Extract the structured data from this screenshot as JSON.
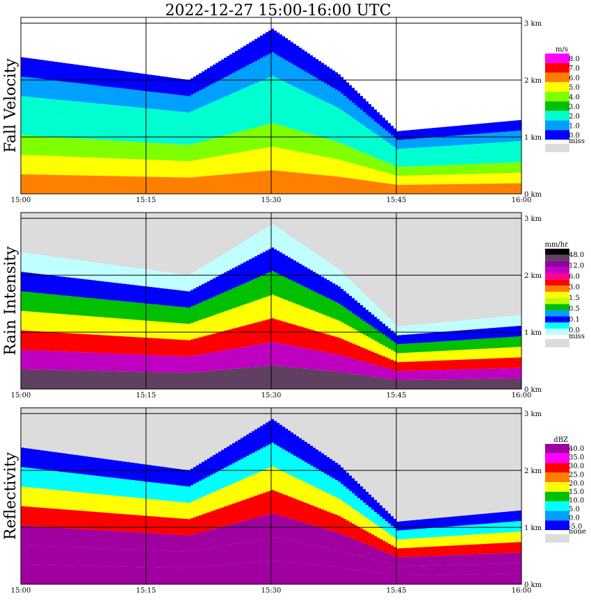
{
  "title": "2022-12-27   15:00-16:00 UTC",
  "time_ticks": [
    "15:00",
    "15:15",
    "15:30",
    "15:45",
    "16:00"
  ],
  "height_ticks": [
    "0 km",
    "1 km",
    "2 km",
    "3 km"
  ],
  "colors": {
    "missing": "#dcdcdc",
    "grid": "#000000"
  },
  "chart_data": [
    {
      "type": "heatmap",
      "title": "Fall Velocity",
      "ylabel": "Fall Velocity",
      "x_range": [
        "15:00",
        "16:00"
      ],
      "y_range_km": [
        0,
        3.1
      ],
      "grid": true,
      "legend": {
        "unit": "m/s",
        "labels": [
          "8.0",
          "7.0",
          "6.0",
          "5.0",
          "4.0",
          "3.0",
          "2.0",
          "1.0",
          "0.0"
        ],
        "colors": [
          "#ff00ff",
          "#ff0000",
          "#ff8000",
          "#ffff00",
          "#80ff00",
          "#00c000",
          "#00ffd0",
          "#00a0ff",
          "#0000ff"
        ],
        "missing_label": "miss"
      },
      "echo_top_km": [
        {
          "time": "15:00",
          "km": 2.4
        },
        {
          "time": "15:10",
          "km": 2.2
        },
        {
          "time": "15:20",
          "km": 2.0
        },
        {
          "time": "15:30",
          "km": 2.9
        },
        {
          "time": "15:38",
          "km": 2.1
        },
        {
          "time": "15:45",
          "km": 1.1
        },
        {
          "time": "16:00",
          "km": 1.3
        }
      ]
    },
    {
      "type": "heatmap",
      "title": "Rain Intensity",
      "ylabel": "Rain Intensity",
      "x_range": [
        "15:00",
        "16:00"
      ],
      "y_range_km": [
        0,
        3.1
      ],
      "grid": true,
      "legend": {
        "unit": "mm/hr",
        "labels": [
          "48.0",
          "12.0",
          "6.0",
          "3.0",
          "1.5",
          "0.5",
          "0.1",
          "0.0"
        ],
        "colors": [
          "#000000",
          "#604060",
          "#9000a0",
          "#c000c0",
          "#ff00a0",
          "#ff0000",
          "#ff8000",
          "#ffff00",
          "#c0ff00",
          "#00c000",
          "#00a0ff",
          "#0000ff",
          "#00ffff",
          "#c0ffff"
        ],
        "missing_label": "miss"
      },
      "echo_top_km": [
        {
          "time": "15:00",
          "km": 2.4
        },
        {
          "time": "15:10",
          "km": 2.2
        },
        {
          "time": "15:20",
          "km": 2.0
        },
        {
          "time": "15:30",
          "km": 2.9
        },
        {
          "time": "15:38",
          "km": 2.1
        },
        {
          "time": "15:45",
          "km": 1.1
        },
        {
          "time": "16:00",
          "km": 1.3
        }
      ]
    },
    {
      "type": "heatmap",
      "title": "Reflectivity",
      "ylabel": "Reflectivity",
      "x_range": [
        "15:00",
        "16:00"
      ],
      "y_range_km": [
        0,
        3.1
      ],
      "grid": true,
      "legend": {
        "unit": "dBZ",
        "labels": [
          "40.0",
          "35.0",
          "30.0",
          "25.0",
          "20.0",
          "15.0",
          "10.0",
          "5.0",
          "0.0",
          "-5.0"
        ],
        "colors": [
          "#a000a0",
          "#ff00ff",
          "#ff0000",
          "#ff8000",
          "#ffff00",
          "#00c000",
          "#00ffff",
          "#00a0ff",
          "#0000ff"
        ],
        "missing_label": "none"
      },
      "echo_top_km": [
        {
          "time": "15:00",
          "km": 2.4
        },
        {
          "time": "15:10",
          "km": 2.2
        },
        {
          "time": "15:20",
          "km": 2.0
        },
        {
          "time": "15:30",
          "km": 2.9
        },
        {
          "time": "15:38",
          "km": 2.1
        },
        {
          "time": "15:45",
          "km": 1.1
        },
        {
          "time": "16:00",
          "km": 1.3
        }
      ]
    }
  ]
}
